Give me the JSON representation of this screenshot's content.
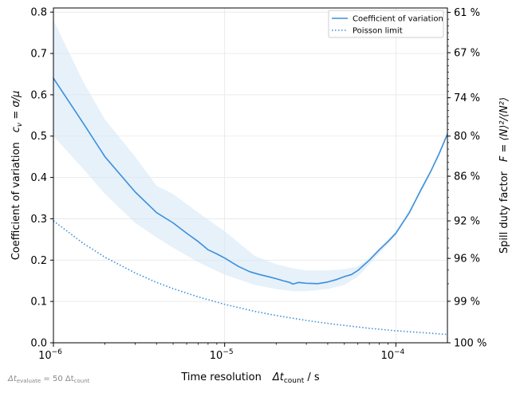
{
  "chart_data": {
    "type": "line",
    "x_scale": "log",
    "xlim": [
      1e-06,
      0.0002
    ],
    "ylim": [
      0,
      0.81
    ],
    "xticks": [
      {
        "value": 1e-06,
        "base": "10",
        "exp": "−6"
      },
      {
        "value": 1e-05,
        "base": "10",
        "exp": "−5"
      },
      {
        "value": 0.0001,
        "base": "10",
        "exp": "−4"
      }
    ],
    "yticks": [
      {
        "value": 0.0,
        "label": "0.0"
      },
      {
        "value": 0.1,
        "label": "0.1"
      },
      {
        "value": 0.2,
        "label": "0.2"
      },
      {
        "value": 0.3,
        "label": "0.3"
      },
      {
        "value": 0.4,
        "label": "0.4"
      },
      {
        "value": 0.5,
        "label": "0.5"
      },
      {
        "value": 0.6,
        "label": "0.6"
      },
      {
        "value": 0.7,
        "label": "0.7"
      },
      {
        "value": 0.8,
        "label": "0.8"
      }
    ],
    "y2ticks": [
      {
        "cv": 0.0,
        "label": "100 %"
      },
      {
        "cv": 0.1005,
        "label": "99 %"
      },
      {
        "cv": 0.2041,
        "label": "96 %"
      },
      {
        "cv": 0.2949,
        "label": "92 %"
      },
      {
        "cv": 0.4029,
        "label": "86 %"
      },
      {
        "cv": 0.5,
        "label": "80 %"
      },
      {
        "cv": 0.5928,
        "label": "74 %"
      },
      {
        "cv": 0.7018,
        "label": "67 %"
      },
      {
        "cv": 0.7993,
        "label": "61 %"
      }
    ],
    "xlabel": {
      "text": "Time resolution",
      "symbol": "Δt",
      "sub": "count",
      "unit": " / s"
    },
    "ylabel": {
      "text": "Coefficient of variation",
      "symbol": "c",
      "sub": "v",
      "rhs": " = σ/μ"
    },
    "y2label": {
      "text": "Spill duty factor",
      "formula": "F = ⟨N⟩²/⟨N²⟩"
    },
    "grid": true,
    "legend": {
      "position": "top-right"
    },
    "series": [
      {
        "name": "Coefficient of variation",
        "style": "solid",
        "color": "#3b8fdb",
        "x": [
          1e-06,
          1.5e-06,
          2e-06,
          3e-06,
          4e-06,
          5e-06,
          6e-06,
          7e-06,
          8e-06,
          9e-06,
          1e-05,
          1.2e-05,
          1.4e-05,
          1.6e-05,
          1.8e-05,
          2e-05,
          2.2e-05,
          2.4e-05,
          2.5e-05,
          2.7e-05,
          3e-05,
          3.5e-05,
          4e-05,
          4.5e-05,
          5e-05,
          5.5e-05,
          6e-05,
          7e-05,
          8e-05,
          9e-05,
          0.0001,
          0.00012,
          0.00014,
          0.00016,
          0.00018,
          0.0002
        ],
        "y": [
          0.64,
          0.53,
          0.45,
          0.365,
          0.315,
          0.29,
          0.265,
          0.245,
          0.225,
          0.215,
          0.205,
          0.185,
          0.172,
          0.165,
          0.16,
          0.155,
          0.15,
          0.146,
          0.142,
          0.146,
          0.144,
          0.143,
          0.147,
          0.153,
          0.16,
          0.165,
          0.175,
          0.2,
          0.225,
          0.245,
          0.265,
          0.315,
          0.37,
          0.415,
          0.46,
          0.505
        ]
      },
      {
        "name": "Poisson limit",
        "style": "dotted",
        "color": "#3b8fdb",
        "x": [
          1e-06,
          1.5e-06,
          2e-06,
          3e-06,
          4e-06,
          5e-06,
          7e-06,
          1e-05,
          1.5e-05,
          2e-05,
          3e-05,
          4e-05,
          5e-05,
          7e-05,
          0.0001,
          0.00015,
          0.0002
        ],
        "y": [
          0.295,
          0.24,
          0.207,
          0.169,
          0.146,
          0.131,
          0.111,
          0.093,
          0.076,
          0.066,
          0.054,
          0.047,
          0.042,
          0.035,
          0.029,
          0.024,
          0.02
        ]
      }
    ],
    "band": {
      "color": "#d6e8f7",
      "x": [
        1e-06,
        1.5e-06,
        2e-06,
        3e-06,
        4e-06,
        5e-06,
        7e-06,
        1e-05,
        1.5e-05,
        2e-05,
        2.5e-05,
        3e-05,
        4e-05,
        5e-05,
        6e-05,
        7e-05,
        0.0001,
        0.00015,
        0.0002
      ],
      "upper": [
        0.78,
        0.63,
        0.54,
        0.45,
        0.38,
        0.36,
        0.315,
        0.27,
        0.21,
        0.19,
        0.18,
        0.175,
        0.175,
        0.178,
        0.185,
        0.205,
        0.27,
        0.39,
        0.51
      ],
      "lower": [
        0.5,
        0.42,
        0.36,
        0.29,
        0.255,
        0.23,
        0.195,
        0.165,
        0.14,
        0.13,
        0.125,
        0.125,
        0.13,
        0.14,
        0.16,
        0.19,
        0.26,
        0.385,
        0.5
      ]
    }
  },
  "footnote": {
    "symbol": "Δt",
    "sub": "evaluate",
    "rhs": " = 50 Δt",
    "sub2": "count"
  }
}
